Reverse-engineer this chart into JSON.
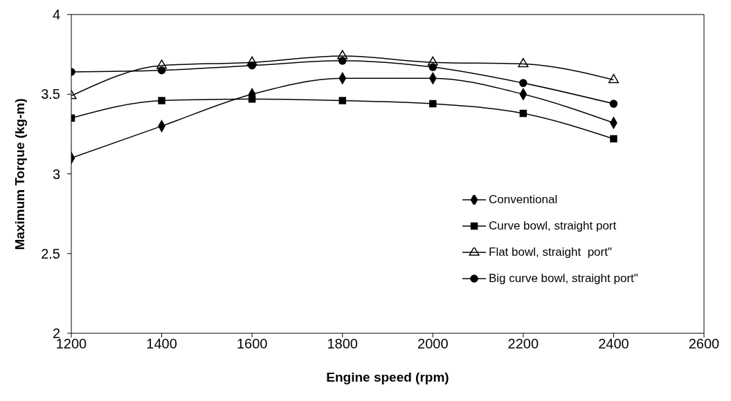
{
  "chart_data": {
    "type": "line",
    "xlabel": "Engine speed (rpm)",
    "ylabel": "Maximum Torque (kg-m)",
    "x": [
      1200,
      1400,
      1600,
      1800,
      2000,
      2200,
      2400
    ],
    "series": [
      {
        "name": "Conventional",
        "color": "#000000",
        "marker": "diamond",
        "values": [
          3.1,
          3.3,
          3.5,
          3.6,
          3.6,
          3.5,
          3.32
        ]
      },
      {
        "name": "Curve bowl, straight port",
        "color": "#000000",
        "marker": "square",
        "values": [
          3.35,
          3.46,
          3.47,
          3.46,
          3.44,
          3.38,
          3.22
        ]
      },
      {
        "name": "Flat bowl, straight  port\"",
        "color": "#000000",
        "marker": "triangle",
        "values": [
          3.49,
          3.68,
          3.7,
          3.74,
          3.7,
          3.69,
          3.59
        ]
      },
      {
        "name": "Big curve bowl, straight port\"",
        "color": "#000000",
        "marker": "circle",
        "values": [
          3.64,
          3.65,
          3.68,
          3.71,
          3.67,
          3.57,
          3.44
        ]
      }
    ],
    "xlim": [
      1200,
      2600
    ],
    "xticks": [
      1200,
      1400,
      1600,
      1800,
      2000,
      2200,
      2400,
      2600
    ],
    "ylim": [
      2,
      4
    ],
    "yticks": [
      2,
      2.5,
      3,
      3.5,
      4
    ],
    "grid": false,
    "legend": "bottom right",
    "line_style": "solid"
  }
}
